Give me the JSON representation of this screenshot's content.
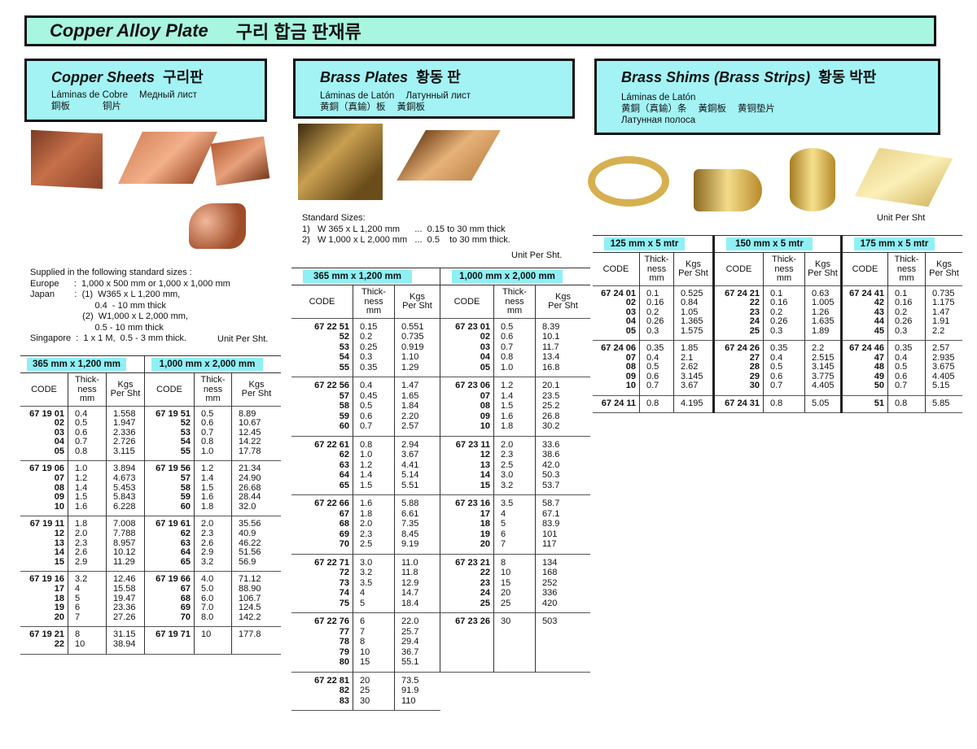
{
  "title": {
    "en": "Copper Alloy Plate",
    "ko": "구리 합금 판재류"
  },
  "colors": {
    "title_bg": "#a8f5e0",
    "section_bg": "#a3f3f5",
    "band_bg": "#8ef0f5"
  },
  "copper": {
    "heading": "Copper Sheets",
    "heading_ko": "구리판",
    "langs1": [
      "Láminas de Cobre",
      "Медный лист"
    ],
    "langs2": [
      "銅板",
      "铜片"
    ],
    "sizes_text": "Supplied in the following standard sizes :\nEurope      :  1,000 x 500 mm or 1,000 x 1,000 mm\nJapan        :  (1)  W365 x L 1,200 mm,\n                          0.4  - 10 mm thick\n                     (2)  W1,000 x L 2,000 mm,\n                          0.5 - 10 mm thick\nSingapore  :  1 x 1 M,  0.5 - 3 mm thick.",
    "unit": "Unit Per Sht."
  },
  "brass": {
    "heading": "Brass Plates",
    "heading_ko": "황동 판",
    "langs1": [
      "Láminas de Latón",
      "Латунный лист"
    ],
    "langs2": [
      "黄銅（真鍮）板",
      "黃銅板"
    ],
    "sizes_text": "Standard Sizes:\n1)   W 365 x L 1,200 mm      ...  0.15 to 30 mm thick\n2)   W 1,000 x L 2,000 mm   ...  0.5    to 30 mm thick.",
    "unit": "Unit Per Sht."
  },
  "shims": {
    "heading": "Brass Shims (Brass Strips)",
    "heading_ko": "황동 박판",
    "langs1": [
      "Láminas de Latón"
    ],
    "langs2": [
      "黄銅（真鍮）条",
      "黃銅板",
      "黄铜垫片"
    ],
    "langs3": [
      "Латунная полоса"
    ],
    "unit": "Unit Per Sht"
  },
  "col_headers": {
    "code": "CODE",
    "thick": "Thick-\nness\nmm",
    "kgs": "Kgs\nPer Sht"
  },
  "tables": {
    "copper": [
      {
        "size": "365 mm x 1,200 mm",
        "groups": [
          [
            [
              "67 19 01",
              "0.4",
              "1.558"
            ],
            [
              "02",
              "0.5",
              "1.947"
            ],
            [
              "03",
              "0.6",
              "2.336"
            ],
            [
              "04",
              "0.7",
              "2.726"
            ],
            [
              "05",
              "0.8",
              "3.115"
            ]
          ],
          [
            [
              "67 19 06",
              "1.0",
              "3.894"
            ],
            [
              "07",
              "1.2",
              "4.673"
            ],
            [
              "08",
              "1.4",
              "5.453"
            ],
            [
              "09",
              "1.5",
              "5.843"
            ],
            [
              "10",
              "1.6",
              "6.228"
            ]
          ],
          [
            [
              "67 19 11",
              "1.8",
              "7.008"
            ],
            [
              "12",
              "2.0",
              "7.788"
            ],
            [
              "13",
              "2.3",
              "8.957"
            ],
            [
              "14",
              "2.6",
              "10.12"
            ],
            [
              "15",
              "2.9",
              "11.29"
            ]
          ],
          [
            [
              "67 19 16",
              "3.2",
              "12.46"
            ],
            [
              "17",
              "4",
              "15.58"
            ],
            [
              "18",
              "5",
              "19.47"
            ],
            [
              "19",
              "6",
              "23.36"
            ],
            [
              "20",
              "7",
              "27.26"
            ]
          ],
          [
            [
              "67 19 21",
              "8",
              "31.15"
            ],
            [
              "22",
              "10",
              "38.94"
            ]
          ]
        ]
      },
      {
        "size": "1,000 mm x 2,000 mm",
        "groups": [
          [
            [
              "67 19 51",
              "0.5",
              "8.89"
            ],
            [
              "52",
              "0.6",
              "10.67"
            ],
            [
              "53",
              "0.7",
              "12.45"
            ],
            [
              "54",
              "0.8",
              "14.22"
            ],
            [
              "55",
              "1.0",
              "17.78"
            ]
          ],
          [
            [
              "67 19 56",
              "1.2",
              "21.34"
            ],
            [
              "57",
              "1.4",
              "24.90"
            ],
            [
              "58",
              "1.5",
              "26.68"
            ],
            [
              "59",
              "1.6",
              "28.44"
            ],
            [
              "60",
              "1.8",
              "32.0"
            ]
          ],
          [
            [
              "67 19 61",
              "2.0",
              "35.56"
            ],
            [
              "62",
              "2.3",
              "40.9"
            ],
            [
              "63",
              "2.6",
              "46.22"
            ],
            [
              "64",
              "2.9",
              "51.56"
            ],
            [
              "65",
              "3.2",
              "56.9"
            ]
          ],
          [
            [
              "67 19 66",
              "4.0",
              "71.12"
            ],
            [
              "67",
              "5.0",
              "88.90"
            ],
            [
              "68",
              "6.0",
              "106.7"
            ],
            [
              "69",
              "7.0",
              "124.5"
            ],
            [
              "70",
              "8.0",
              "142.2"
            ]
          ],
          [
            [
              "67 19 71",
              "10",
              "177.8"
            ]
          ]
        ]
      }
    ],
    "brass": [
      {
        "size": "365 mm x 1,200 mm",
        "groups": [
          [
            [
              "67 22 51",
              "0.15",
              "0.551"
            ],
            [
              "52",
              "0.2",
              "0.735"
            ],
            [
              "53",
              "0.25",
              "0.919"
            ],
            [
              "54",
              "0.3",
              "1.10"
            ],
            [
              "55",
              "0.35",
              "1.29"
            ]
          ],
          [
            [
              "67 22 56",
              "0.4",
              "1.47"
            ],
            [
              "57",
              "0.45",
              "1.65"
            ],
            [
              "58",
              "0.5",
              "1.84"
            ],
            [
              "59",
              "0.6",
              "2.20"
            ],
            [
              "60",
              "0.7",
              "2.57"
            ]
          ],
          [
            [
              "67 22 61",
              "0.8",
              "2.94"
            ],
            [
              "62",
              "1.0",
              "3.67"
            ],
            [
              "63",
              "1.2",
              "4.41"
            ],
            [
              "64",
              "1.4",
              "5.14"
            ],
            [
              "65",
              "1.5",
              "5.51"
            ]
          ],
          [
            [
              "67 22 66",
              "1.6",
              "5.88"
            ],
            [
              "67",
              "1.8",
              "6.61"
            ],
            [
              "68",
              "2.0",
              "7.35"
            ],
            [
              "69",
              "2.3",
              "8.45"
            ],
            [
              "70",
              "2.5",
              "9.19"
            ]
          ],
          [
            [
              "67 22 71",
              "3.0",
              "11.0"
            ],
            [
              "72",
              "3.2",
              "11.8"
            ],
            [
              "73",
              "3.5",
              "12.9"
            ],
            [
              "74",
              "4",
              "14.7"
            ],
            [
              "75",
              "5",
              "18.4"
            ]
          ],
          [
            [
              "67 22 76",
              "6",
              "22.0"
            ],
            [
              "77",
              "7",
              "25.7"
            ],
            [
              "78",
              "8",
              "29.4"
            ],
            [
              "79",
              "10",
              "36.7"
            ],
            [
              "80",
              "15",
              "55.1"
            ]
          ],
          [
            [
              "67 22 81",
              "20",
              "73.5"
            ],
            [
              "82",
              "25",
              "91.9"
            ],
            [
              "83",
              "30",
              "110"
            ]
          ]
        ]
      },
      {
        "size": "1,000 mm x 2,000 mm",
        "groups": [
          [
            [
              "67 23 01",
              "0.5",
              "8.39"
            ],
            [
              "02",
              "0.6",
              "10.1"
            ],
            [
              "03",
              "0.7",
              "11.7"
            ],
            [
              "04",
              "0.8",
              "13.4"
            ],
            [
              "05",
              "1.0",
              "16.8"
            ]
          ],
          [
            [
              "67 23 06",
              "1.2",
              "20.1"
            ],
            [
              "07",
              "1.4",
              "23.5"
            ],
            [
              "08",
              "1.5",
              "25.2"
            ],
            [
              "09",
              "1.6",
              "26.8"
            ],
            [
              "10",
              "1.8",
              "30.2"
            ]
          ],
          [
            [
              "67 23 11",
              "2.0",
              "33.6"
            ],
            [
              "12",
              "2.3",
              "38.6"
            ],
            [
              "13",
              "2.5",
              "42.0"
            ],
            [
              "14",
              "3.0",
              "50.3"
            ],
            [
              "15",
              "3.2",
              "53.7"
            ]
          ],
          [
            [
              "67 23 16",
              "3.5",
              "58.7"
            ],
            [
              "17",
              "4",
              "67.1"
            ],
            [
              "18",
              "5",
              "83.9"
            ],
            [
              "19",
              "6",
              "101"
            ],
            [
              "20",
              "7",
              "117"
            ]
          ],
          [
            [
              "67 23 21",
              "8",
              "134"
            ],
            [
              "22",
              "10",
              "168"
            ],
            [
              "23",
              "15",
              "252"
            ],
            [
              "24",
              "20",
              "336"
            ],
            [
              "25",
              "25",
              "420"
            ]
          ],
          [
            [
              "67 23 26",
              "30",
              "503"
            ]
          ]
        ]
      }
    ],
    "shims": [
      {
        "size": "125 mm x 5 mtr",
        "groups": [
          [
            [
              "67 24 01",
              "0.1",
              "0.525"
            ],
            [
              "02",
              "0.16",
              "0.84"
            ],
            [
              "03",
              "0.2",
              "1.05"
            ],
            [
              "04",
              "0.26",
              "1.365"
            ],
            [
              "05",
              "0.3",
              "1.575"
            ]
          ],
          [
            [
              "67 24 06",
              "0.35",
              "1.85"
            ],
            [
              "07",
              "0.4",
              "2.1"
            ],
            [
              "08",
              "0.5",
              "2.62"
            ],
            [
              "09",
              "0.6",
              "3.145"
            ],
            [
              "10",
              "0.7",
              "3.67"
            ]
          ],
          [
            [
              "67 24 11",
              "0.8",
              "4.195"
            ]
          ]
        ]
      },
      {
        "size": "150 mm x 5 mtr",
        "groups": [
          [
            [
              "67 24 21",
              "0.1",
              "0.63"
            ],
            [
              "22",
              "0.16",
              "1.005"
            ],
            [
              "23",
              "0.2",
              "1.26"
            ],
            [
              "24",
              "0.26",
              "1.635"
            ],
            [
              "25",
              "0.3",
              "1.89"
            ]
          ],
          [
            [
              "67 24 26",
              "0.35",
              "2.2"
            ],
            [
              "27",
              "0.4",
              "2.515"
            ],
            [
              "28",
              "0.5",
              "3.145"
            ],
            [
              "29",
              "0.6",
              "3.775"
            ],
            [
              "30",
              "0.7",
              "4.405"
            ]
          ],
          [
            [
              "67 24 31",
              "0.8",
              "5.05"
            ]
          ]
        ]
      },
      {
        "size": "175 mm x 5 mtr",
        "groups": [
          [
            [
              "67 24 41",
              "0.1",
              "0.735"
            ],
            [
              "42",
              "0.16",
              "1.175"
            ],
            [
              "43",
              "0.2",
              "1.47"
            ],
            [
              "44",
              "0.26",
              "1.91"
            ],
            [
              "45",
              "0.3",
              "2.2"
            ]
          ],
          [
            [
              "67 24 46",
              "0.35",
              "2.57"
            ],
            [
              "47",
              "0.4",
              "2.935"
            ],
            [
              "48",
              "0.5",
              "3.675"
            ],
            [
              "49",
              "0.6",
              "4.405"
            ],
            [
              "50",
              "0.7",
              "5.15"
            ]
          ],
          [
            [
              "51",
              "0.8",
              "5.85"
            ]
          ]
        ]
      }
    ]
  }
}
